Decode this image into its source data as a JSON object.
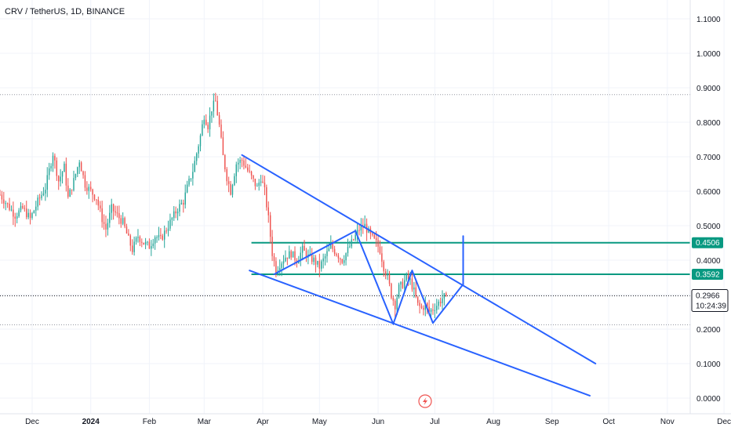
{
  "header": {
    "symbol_title": "CRV / TetherUS, 1D, BINANCE"
  },
  "colors": {
    "up": "#26a69a",
    "down": "#ef5350",
    "drawing": "#2962ff",
    "level": "#089981",
    "grid": "#f0f3fa",
    "text": "#131722",
    "background": "#ffffff"
  },
  "chart_data": {
    "type": "candlestick",
    "title": "",
    "xlabel": "",
    "ylabel": "",
    "y_ticks": [
      "1.1000",
      "1.0000",
      "0.9000",
      "0.8000",
      "0.7000",
      "0.6000",
      "0.5000",
      "0.4000",
      "0.3000",
      "0.2000",
      "0.1000",
      "0.0000"
    ],
    "y_tick_values": [
      1.1,
      1.0,
      0.9,
      0.8,
      0.7,
      0.6,
      0.5,
      0.4,
      0.3,
      0.2,
      0.1,
      0.0
    ],
    "x_ticks": [
      {
        "label": "Dec",
        "day": 9,
        "bold": false
      },
      {
        "label": "2024",
        "day": 40,
        "bold": true
      },
      {
        "label": "Feb",
        "day": 71,
        "bold": false
      },
      {
        "label": "Mar",
        "day": 100,
        "bold": false
      },
      {
        "label": "Apr",
        "day": 131,
        "bold": false
      },
      {
        "label": "May",
        "day": 161,
        "bold": false
      },
      {
        "label": "Jun",
        "day": 192,
        "bold": false
      },
      {
        "label": "Jul",
        "day": 222,
        "bold": false
      },
      {
        "label": "Aug",
        "day": 253,
        "bold": false
      },
      {
        "label": "Sep",
        "day": 284,
        "bold": false
      },
      {
        "label": "Oct",
        "day": 314,
        "bold": false
      },
      {
        "label": "Nov",
        "day": 345,
        "bold": false
      },
      {
        "label": "Dec",
        "day": 375,
        "bold": false
      }
    ],
    "y_range": [
      0.0,
      1.1
    ],
    "x_range_days": [
      -8,
      382
    ],
    "price_path": [
      [
        -8,
        0.59
      ],
      [
        -4,
        0.56
      ],
      [
        0,
        0.53
      ],
      [
        4,
        0.55
      ],
      [
        8,
        0.52
      ],
      [
        12,
        0.57
      ],
      [
        16,
        0.61
      ],
      [
        18,
        0.66
      ],
      [
        20,
        0.71
      ],
      [
        23,
        0.63
      ],
      [
        26,
        0.67
      ],
      [
        28,
        0.58
      ],
      [
        31,
        0.63
      ],
      [
        34,
        0.69
      ],
      [
        37,
        0.62
      ],
      [
        40,
        0.6
      ],
      [
        43,
        0.58
      ],
      [
        46,
        0.52
      ],
      [
        48,
        0.49
      ],
      [
        51,
        0.55
      ],
      [
        54,
        0.53
      ],
      [
        57,
        0.51
      ],
      [
        60,
        0.46
      ],
      [
        62,
        0.43
      ],
      [
        65,
        0.47
      ],
      [
        68,
        0.45
      ],
      [
        71,
        0.44
      ],
      [
        74,
        0.47
      ],
      [
        77,
        0.46
      ],
      [
        80,
        0.49
      ],
      [
        83,
        0.52
      ],
      [
        86,
        0.55
      ],
      [
        89,
        0.57
      ],
      [
        91,
        0.61
      ],
      [
        94,
        0.66
      ],
      [
        96,
        0.71
      ],
      [
        98,
        0.76
      ],
      [
        100,
        0.82
      ],
      [
        102,
        0.79
      ],
      [
        104,
        0.84
      ],
      [
        106,
        0.86
      ],
      [
        108,
        0.79
      ],
      [
        110,
        0.7
      ],
      [
        112,
        0.64
      ],
      [
        114,
        0.6
      ],
      [
        117,
        0.68
      ],
      [
        120,
        0.69
      ],
      [
        123,
        0.66
      ],
      [
        126,
        0.63
      ],
      [
        128,
        0.61
      ],
      [
        130,
        0.64
      ],
      [
        132,
        0.6
      ],
      [
        134,
        0.52
      ],
      [
        136,
        0.42
      ],
      [
        138,
        0.37
      ],
      [
        140,
        0.39
      ],
      [
        143,
        0.41
      ],
      [
        146,
        0.42
      ],
      [
        149,
        0.4
      ],
      [
        152,
        0.43
      ],
      [
        155,
        0.41
      ],
      [
        158,
        0.4
      ],
      [
        161,
        0.38
      ],
      [
        164,
        0.41
      ],
      [
        167,
        0.44
      ],
      [
        170,
        0.42
      ],
      [
        173,
        0.4
      ],
      [
        176,
        0.43
      ],
      [
        179,
        0.46
      ],
      [
        182,
        0.49
      ],
      [
        185,
        0.5
      ],
      [
        188,
        0.47
      ],
      [
        191,
        0.45
      ],
      [
        193,
        0.43
      ],
      [
        195,
        0.38
      ],
      [
        197,
        0.35
      ],
      [
        199,
        0.3
      ],
      [
        201,
        0.27
      ],
      [
        203,
        0.32
      ],
      [
        205,
        0.33
      ],
      [
        207,
        0.35
      ],
      [
        209,
        0.34
      ],
      [
        211,
        0.31
      ],
      [
        213,
        0.27
      ],
      [
        215,
        0.26
      ],
      [
        217,
        0.27
      ],
      [
        219,
        0.25
      ],
      [
        221,
        0.26
      ],
      [
        223,
        0.27
      ],
      [
        226,
        0.29
      ],
      [
        228,
        0.2966
      ]
    ],
    "levels": [
      {
        "price": 0.4506,
        "label": "0.4506",
        "start_day": 125
      },
      {
        "price": 0.3592,
        "label": "0.3592",
        "start_day": 125
      }
    ],
    "reference_lines": [
      {
        "price": 0.88,
        "style": "dotted"
      },
      {
        "price": 0.2125,
        "style": "dotted"
      }
    ],
    "current_price": {
      "price": 0.2966,
      "label": "0.2966",
      "countdown": "10:24:39"
    },
    "drawings": [
      {
        "name": "channel-upper-line",
        "points": [
          [
            120,
            0.705
          ],
          [
            307,
            0.1
          ]
        ]
      },
      {
        "name": "channel-lower-line",
        "points": [
          [
            124,
            0.37
          ],
          [
            304,
            0.007
          ]
        ]
      },
      {
        "name": "pattern-left-leg-up",
        "points": [
          [
            137,
            0.359
          ],
          [
            180,
            0.485
          ]
        ]
      },
      {
        "name": "pattern-neckline",
        "points": [
          [
            180,
            0.485
          ],
          [
            200,
            0.215
          ]
        ]
      },
      {
        "name": "pattern-mid-rise",
        "points": [
          [
            200,
            0.215
          ],
          [
            210,
            0.37
          ]
        ]
      },
      {
        "name": "pattern-mid-fall",
        "points": [
          [
            210,
            0.37
          ],
          [
            221,
            0.218
          ]
        ]
      },
      {
        "name": "pattern-right-rise",
        "points": [
          [
            221,
            0.218
          ],
          [
            237,
            0.33
          ]
        ]
      },
      {
        "name": "target-projection-line",
        "points": [
          [
            237,
            0.33
          ],
          [
            237,
            0.47
          ]
        ]
      }
    ]
  }
}
